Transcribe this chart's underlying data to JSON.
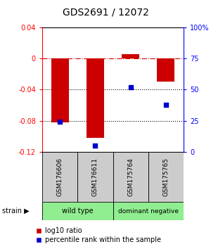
{
  "title": "GDS2691 / 12072",
  "samples": [
    "GSM176606",
    "GSM176611",
    "GSM175764",
    "GSM175765"
  ],
  "log10_ratio": [
    -0.082,
    -0.102,
    0.006,
    -0.03
  ],
  "percentile_rank": [
    24,
    5,
    52,
    38
  ],
  "ylim_left": [
    -0.12,
    0.04
  ],
  "ylim_right": [
    0,
    100
  ],
  "bar_color": "#cc0000",
  "dot_color": "#0000cc",
  "hline_0_color": "#cc0000",
  "hline_dotted_color": "#000000",
  "sample_label_color": "#cccccc",
  "group_color_wt": "#90ee90",
  "group_color_dn": "#90ee90",
  "title_fontsize": 10,
  "legend_red_label": "log10 ratio",
  "legend_blue_label": "percentile rank within the sample",
  "yticks_left": [
    0.04,
    0,
    -0.04,
    -0.08,
    -0.12
  ],
  "ytick_labels_left": [
    "0.04",
    "0",
    "-0.04",
    "-0.08",
    "-0.12"
  ],
  "yticks_right": [
    0,
    25,
    50,
    75,
    100
  ],
  "ytick_labels_right": [
    "0",
    "25",
    "50",
    "75",
    "100%"
  ]
}
